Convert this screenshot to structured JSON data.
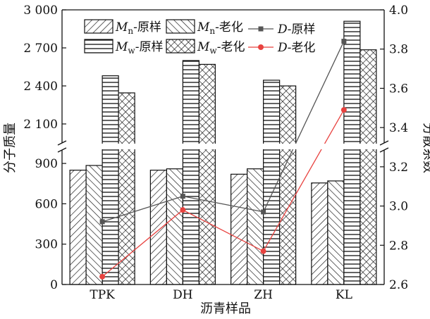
{
  "chart_data": {
    "type": "bar",
    "title": "",
    "xlabel": "沥青样品",
    "ylabel_left": "分子质量",
    "ylabel_right": "分散系数",
    "categories": [
      "TPK",
      "DH",
      "ZH",
      "KL"
    ],
    "y_left_broken_axis": {
      "lower_range": [
        0,
        1000
      ],
      "lower_ticks": [
        0,
        300,
        600,
        900
      ],
      "lower_tick_labels": [
        "0",
        "300",
        "600",
        "900"
      ],
      "upper_range": [
        1950,
        3000
      ],
      "upper_ticks": [
        2100,
        2400,
        2700,
        3000
      ],
      "upper_tick_labels": [
        "2 100",
        "2 400",
        "2 700",
        "3 000"
      ]
    },
    "y_right": {
      "range": [
        2.6,
        4.0
      ],
      "ticks": [
        2.6,
        2.8,
        3.0,
        3.2,
        3.4,
        3.6,
        3.8,
        4.0
      ],
      "tick_labels": [
        "2.6",
        "2.8",
        "3.0",
        "3.2",
        "3.4",
        "3.6",
        "3.8",
        "4.0"
      ]
    },
    "bar_series": [
      {
        "name": "Mn-原样",
        "name_main": "M",
        "name_sub": "n",
        "name_suffix": "-原样",
        "pattern": "diag-right",
        "values": [
          850,
          850,
          820,
          755
        ]
      },
      {
        "name": "Mn-老化",
        "name_main": "M",
        "name_sub": "n",
        "name_suffix": "-老化",
        "pattern": "diag-left",
        "values": [
          885,
          860,
          860,
          770
        ]
      },
      {
        "name": "Mw-原样",
        "name_main": "M",
        "name_sub": "w",
        "name_suffix": "-原样",
        "pattern": "horizontal",
        "values": [
          2480,
          2600,
          2445,
          2910
        ]
      },
      {
        "name": "Mw-老化",
        "name_main": "M",
        "name_sub": "w",
        "name_suffix": "-老化",
        "pattern": "cross",
        "values": [
          2345,
          2570,
          2400,
          2685
        ]
      }
    ],
    "line_series": [
      {
        "name": "D-原样",
        "name_main": "D",
        "name_suffix": "-原样",
        "color": "#555555",
        "marker": "square",
        "values": [
          2.92,
          3.05,
          2.97,
          3.84
        ]
      },
      {
        "name": "D-老化",
        "name_main": "D",
        "name_suffix": "-老化",
        "color": "#e8423f",
        "marker": "circle",
        "values": [
          2.64,
          2.98,
          2.77,
          3.49
        ]
      }
    ],
    "legend_position": "top"
  }
}
